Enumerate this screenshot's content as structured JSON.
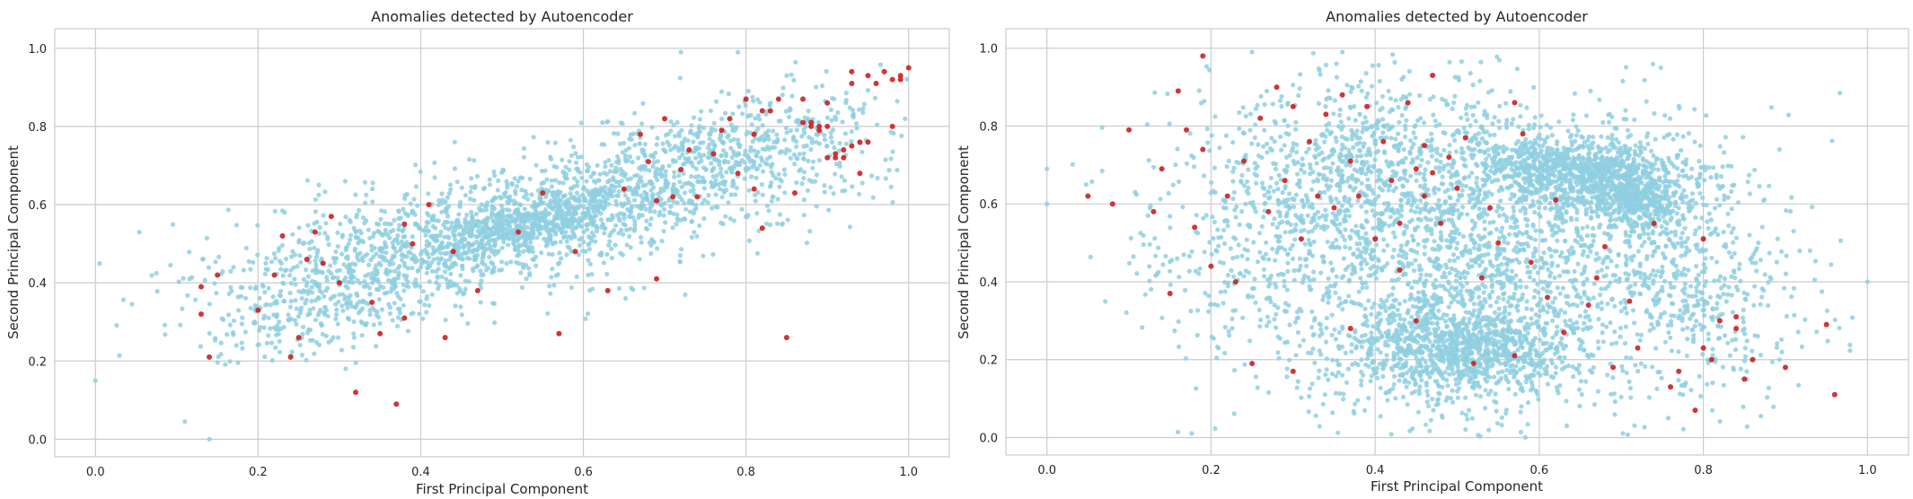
{
  "figure": {
    "background": "#ffffff"
  },
  "colors": {
    "normal": "#8fcfe0",
    "anomaly": "#cc1f1f",
    "grid": "#cccccc",
    "spine": "#cccccc"
  },
  "chart_data": [
    {
      "type": "scatter",
      "title": "Anomalies detected by Autoencoder",
      "xlabel": "First Principal Component",
      "ylabel": "Second Principal Component",
      "xlim": [
        -0.05,
        1.05
      ],
      "ylim": [
        -0.045,
        1.05
      ],
      "xticks": [
        "0.0",
        "0.2",
        "0.4",
        "0.6",
        "0.8",
        "1.0"
      ],
      "yticks": [
        "0.0",
        "0.2",
        "0.4",
        "0.6",
        "0.8",
        "1.0"
      ],
      "grid": true,
      "legend": "none",
      "series": [
        {
          "role": "normal",
          "clusters": [
            {
              "cx": 0.55,
              "cy": 0.57,
              "sx": 0.2,
              "sy": 0.11,
              "rho": 0.65,
              "n": 1300
            },
            {
              "cx": 0.55,
              "cy": 0.56,
              "sx": 0.07,
              "sy": 0.05,
              "rho": 0.75,
              "n": 500
            },
            {
              "cx": 0.36,
              "cy": 0.42,
              "sx": 0.09,
              "sy": 0.08,
              "rho": 0.55,
              "n": 400
            },
            {
              "cx": 0.78,
              "cy": 0.75,
              "sx": 0.09,
              "sy": 0.07,
              "rho": 0.45,
              "n": 400
            },
            {
              "cx": 0.25,
              "cy": 0.3,
              "sx": 0.05,
              "sy": 0.07,
              "rho": 0.3,
              "n": 120
            }
          ],
          "points": [
            {
              "x": 0.0,
              "y": 0.15
            },
            {
              "x": 0.11,
              "y": 0.045
            },
            {
              "x": 0.14,
              "y": 0.0
            },
            {
              "x": 0.72,
              "y": 0.99
            },
            {
              "x": 0.79,
              "y": 0.99
            },
            {
              "x": 0.85,
              "y": 0.93
            }
          ]
        },
        {
          "role": "anomaly",
          "points": [
            {
              "x": 0.13,
              "y": 0.39
            },
            {
              "x": 0.13,
              "y": 0.32
            },
            {
              "x": 0.14,
              "y": 0.21
            },
            {
              "x": 0.15,
              "y": 0.42
            },
            {
              "x": 0.2,
              "y": 0.33
            },
            {
              "x": 0.22,
              "y": 0.42
            },
            {
              "x": 0.23,
              "y": 0.52
            },
            {
              "x": 0.24,
              "y": 0.21
            },
            {
              "x": 0.25,
              "y": 0.26
            },
            {
              "x": 0.26,
              "y": 0.46
            },
            {
              "x": 0.27,
              "y": 0.53
            },
            {
              "x": 0.28,
              "y": 0.45
            },
            {
              "x": 0.29,
              "y": 0.57
            },
            {
              "x": 0.3,
              "y": 0.4
            },
            {
              "x": 0.32,
              "y": 0.12
            },
            {
              "x": 0.34,
              "y": 0.35
            },
            {
              "x": 0.35,
              "y": 0.27
            },
            {
              "x": 0.37,
              "y": 0.09
            },
            {
              "x": 0.38,
              "y": 0.31
            },
            {
              "x": 0.38,
              "y": 0.55
            },
            {
              "x": 0.39,
              "y": 0.5
            },
            {
              "x": 0.41,
              "y": 0.6
            },
            {
              "x": 0.43,
              "y": 0.26
            },
            {
              "x": 0.44,
              "y": 0.48
            },
            {
              "x": 0.47,
              "y": 0.38
            },
            {
              "x": 0.52,
              "y": 0.53
            },
            {
              "x": 0.55,
              "y": 0.63
            },
            {
              "x": 0.57,
              "y": 0.27
            },
            {
              "x": 0.59,
              "y": 0.48
            },
            {
              "x": 0.63,
              "y": 0.38
            },
            {
              "x": 0.65,
              "y": 0.64
            },
            {
              "x": 0.67,
              "y": 0.78
            },
            {
              "x": 0.68,
              "y": 0.71
            },
            {
              "x": 0.69,
              "y": 0.61
            },
            {
              "x": 0.69,
              "y": 0.41
            },
            {
              "x": 0.7,
              "y": 0.82
            },
            {
              "x": 0.71,
              "y": 0.62
            },
            {
              "x": 0.72,
              "y": 0.69
            },
            {
              "x": 0.73,
              "y": 0.74
            },
            {
              "x": 0.74,
              "y": 0.62
            },
            {
              "x": 0.76,
              "y": 0.73
            },
            {
              "x": 0.77,
              "y": 0.79
            },
            {
              "x": 0.78,
              "y": 0.82
            },
            {
              "x": 0.79,
              "y": 0.68
            },
            {
              "x": 0.8,
              "y": 0.87
            },
            {
              "x": 0.81,
              "y": 0.78
            },
            {
              "x": 0.81,
              "y": 0.64
            },
            {
              "x": 0.82,
              "y": 0.84
            },
            {
              "x": 0.82,
              "y": 0.54
            },
            {
              "x": 0.84,
              "y": 0.87
            },
            {
              "x": 0.85,
              "y": 0.26
            },
            {
              "x": 0.86,
              "y": 0.63
            },
            {
              "x": 0.87,
              "y": 0.81
            },
            {
              "x": 0.87,
              "y": 0.87
            },
            {
              "x": 0.88,
              "y": 0.8
            },
            {
              "x": 0.88,
              "y": 0.81
            },
            {
              "x": 0.89,
              "y": 0.8
            },
            {
              "x": 0.89,
              "y": 0.79
            },
            {
              "x": 0.9,
              "y": 0.72
            },
            {
              "x": 0.9,
              "y": 0.8
            },
            {
              "x": 0.91,
              "y": 0.72
            },
            {
              "x": 0.91,
              "y": 0.73
            },
            {
              "x": 0.92,
              "y": 0.72
            },
            {
              "x": 0.92,
              "y": 0.74
            },
            {
              "x": 0.93,
              "y": 0.75
            },
            {
              "x": 0.93,
              "y": 0.91
            },
            {
              "x": 0.94,
              "y": 0.76
            },
            {
              "x": 0.94,
              "y": 0.68
            },
            {
              "x": 0.95,
              "y": 0.76
            },
            {
              "x": 0.95,
              "y": 0.93
            },
            {
              "x": 0.96,
              "y": 0.91
            },
            {
              "x": 0.97,
              "y": 0.94
            },
            {
              "x": 0.98,
              "y": 0.8
            },
            {
              "x": 0.98,
              "y": 0.92
            },
            {
              "x": 0.99,
              "y": 0.93
            },
            {
              "x": 0.99,
              "y": 0.92
            },
            {
              "x": 1.0,
              "y": 0.95
            },
            {
              "x": 0.93,
              "y": 0.94
            },
            {
              "x": 0.9,
              "y": 0.86
            },
            {
              "x": 0.83,
              "y": 0.84
            }
          ]
        }
      ]
    },
    {
      "type": "scatter",
      "title": "Anomalies detected by Autoencoder",
      "xlabel": "First Principal Component",
      "ylabel": "Second Principal Component",
      "xlim": [
        -0.05,
        1.05
      ],
      "ylim": [
        -0.045,
        1.05
      ],
      "xticks": [
        "0.0",
        "0.2",
        "0.4",
        "0.6",
        "0.8",
        "1.0"
      ],
      "yticks": [
        "0.0",
        "0.2",
        "0.4",
        "0.6",
        "0.8",
        "1.0"
      ],
      "grid": true,
      "legend": "none",
      "series": [
        {
          "role": "normal",
          "clusters": [
            {
              "cx": 0.52,
              "cy": 0.45,
              "sx": 0.16,
              "sy": 0.2,
              "rho": 0.0,
              "n": 2200
            },
            {
              "cx": 0.66,
              "cy": 0.68,
              "sx": 0.07,
              "sy": 0.05,
              "rho": -0.3,
              "n": 1100
            },
            {
              "cx": 0.72,
              "cy": 0.6,
              "sx": 0.03,
              "sy": 0.04,
              "rho": -0.5,
              "n": 300
            },
            {
              "cx": 0.5,
              "cy": 0.23,
              "sx": 0.07,
              "sy": 0.06,
              "rho": 0.0,
              "n": 900
            },
            {
              "cx": 0.4,
              "cy": 0.72,
              "sx": 0.08,
              "sy": 0.12,
              "rho": 0.0,
              "n": 500
            },
            {
              "cx": 0.25,
              "cy": 0.55,
              "sx": 0.08,
              "sy": 0.16,
              "rho": 0.0,
              "n": 250
            },
            {
              "cx": 0.8,
              "cy": 0.35,
              "sx": 0.07,
              "sy": 0.14,
              "rho": 0.0,
              "n": 250
            }
          ],
          "points": [
            {
              "x": 0.0,
              "y": 0.69
            },
            {
              "x": 0.0,
              "y": 0.6
            },
            {
              "x": 1.0,
              "y": 0.4
            },
            {
              "x": 0.36,
              "y": 0.99
            },
            {
              "x": 0.25,
              "y": 0.99
            },
            {
              "x": 0.93,
              "y": 0.48
            },
            {
              "x": 0.91,
              "y": 0.53
            }
          ]
        },
        {
          "role": "anomaly",
          "points": [
            {
              "x": 0.05,
              "y": 0.62
            },
            {
              "x": 0.08,
              "y": 0.6
            },
            {
              "x": 0.1,
              "y": 0.79
            },
            {
              "x": 0.13,
              "y": 0.58
            },
            {
              "x": 0.14,
              "y": 0.69
            },
            {
              "x": 0.15,
              "y": 0.37
            },
            {
              "x": 0.16,
              "y": 0.89
            },
            {
              "x": 0.17,
              "y": 0.79
            },
            {
              "x": 0.18,
              "y": 0.54
            },
            {
              "x": 0.19,
              "y": 0.98
            },
            {
              "x": 0.19,
              "y": 0.74
            },
            {
              "x": 0.2,
              "y": 0.44
            },
            {
              "x": 0.22,
              "y": 0.62
            },
            {
              "x": 0.23,
              "y": 0.4
            },
            {
              "x": 0.24,
              "y": 0.71
            },
            {
              "x": 0.25,
              "y": 0.19
            },
            {
              "x": 0.26,
              "y": 0.82
            },
            {
              "x": 0.27,
              "y": 0.58
            },
            {
              "x": 0.28,
              "y": 0.9
            },
            {
              "x": 0.29,
              "y": 0.66
            },
            {
              "x": 0.3,
              "y": 0.17
            },
            {
              "x": 0.3,
              "y": 0.85
            },
            {
              "x": 0.31,
              "y": 0.51
            },
            {
              "x": 0.32,
              "y": 0.76
            },
            {
              "x": 0.33,
              "y": 0.62
            },
            {
              "x": 0.34,
              "y": 0.83
            },
            {
              "x": 0.35,
              "y": 0.59
            },
            {
              "x": 0.36,
              "y": 0.88
            },
            {
              "x": 0.37,
              "y": 0.71
            },
            {
              "x": 0.37,
              "y": 0.28
            },
            {
              "x": 0.38,
              "y": 0.62
            },
            {
              "x": 0.39,
              "y": 0.85
            },
            {
              "x": 0.4,
              "y": 0.51
            },
            {
              "x": 0.41,
              "y": 0.76
            },
            {
              "x": 0.42,
              "y": 0.66
            },
            {
              "x": 0.43,
              "y": 0.55
            },
            {
              "x": 0.44,
              "y": 0.86
            },
            {
              "x": 0.45,
              "y": 0.69
            },
            {
              "x": 0.45,
              "y": 0.3
            },
            {
              "x": 0.46,
              "y": 0.62
            },
            {
              "x": 0.46,
              "y": 0.75
            },
            {
              "x": 0.47,
              "y": 0.68
            },
            {
              "x": 0.48,
              "y": 0.55
            },
            {
              "x": 0.49,
              "y": 0.72
            },
            {
              "x": 0.5,
              "y": 0.64
            },
            {
              "x": 0.51,
              "y": 0.77
            },
            {
              "x": 0.52,
              "y": 0.19
            },
            {
              "x": 0.53,
              "y": 0.41
            },
            {
              "x": 0.54,
              "y": 0.59
            },
            {
              "x": 0.55,
              "y": 0.5
            },
            {
              "x": 0.57,
              "y": 0.21
            },
            {
              "x": 0.58,
              "y": 0.78
            },
            {
              "x": 0.59,
              "y": 0.45
            },
            {
              "x": 0.61,
              "y": 0.36
            },
            {
              "x": 0.62,
              "y": 0.61
            },
            {
              "x": 0.63,
              "y": 0.27
            },
            {
              "x": 0.66,
              "y": 0.34
            },
            {
              "x": 0.67,
              "y": 0.41
            },
            {
              "x": 0.68,
              "y": 0.49
            },
            {
              "x": 0.69,
              "y": 0.18
            },
            {
              "x": 0.71,
              "y": 0.35
            },
            {
              "x": 0.72,
              "y": 0.23
            },
            {
              "x": 0.74,
              "y": 0.55
            },
            {
              "x": 0.76,
              "y": 0.13
            },
            {
              "x": 0.77,
              "y": 0.17
            },
            {
              "x": 0.79,
              "y": 0.07
            },
            {
              "x": 0.8,
              "y": 0.51
            },
            {
              "x": 0.8,
              "y": 0.23
            },
            {
              "x": 0.81,
              "y": 0.2
            },
            {
              "x": 0.82,
              "y": 0.3
            },
            {
              "x": 0.84,
              "y": 0.28
            },
            {
              "x": 0.84,
              "y": 0.31
            },
            {
              "x": 0.85,
              "y": 0.15
            },
            {
              "x": 0.86,
              "y": 0.2
            },
            {
              "x": 0.9,
              "y": 0.18
            },
            {
              "x": 0.95,
              "y": 0.29
            },
            {
              "x": 0.96,
              "y": 0.11
            },
            {
              "x": 0.57,
              "y": 0.86
            },
            {
              "x": 0.47,
              "y": 0.93
            },
            {
              "x": 0.43,
              "y": 0.43
            }
          ]
        }
      ]
    }
  ]
}
